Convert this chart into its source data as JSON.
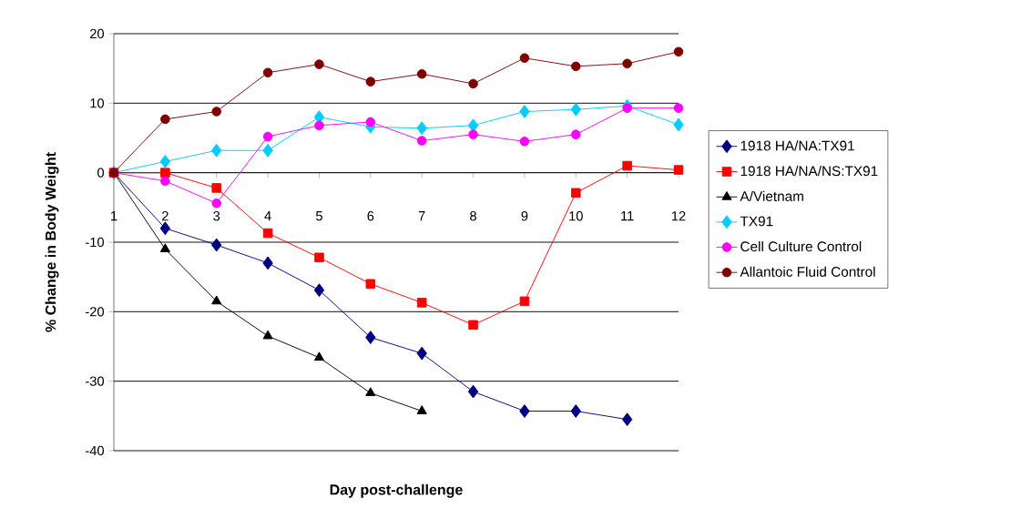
{
  "chart_data": {
    "type": "line",
    "xlabel": "Day post-challenge",
    "ylabel": "% Change in Body Weight",
    "x": [
      1,
      2,
      3,
      4,
      5,
      6,
      7,
      8,
      9,
      10,
      11,
      12
    ],
    "xlim": [
      1,
      12
    ],
    "xticks": [
      1,
      2,
      3,
      4,
      5,
      6,
      7,
      8,
      9,
      10,
      11,
      12
    ],
    "ylim": [
      -40,
      20
    ],
    "yticks": [
      -40,
      -30,
      -20,
      -10,
      0,
      10,
      20
    ],
    "grid": "y",
    "legend": "right",
    "line_style": "solid",
    "series": [
      {
        "name": "1918 HA/NA:TX91",
        "color": "#000080",
        "marker": "diamond",
        "values": [
          0,
          -8.0,
          -10.4,
          -13.0,
          -16.9,
          -23.7,
          -26.0,
          -31.5,
          -34.3,
          -34.3,
          -35.5,
          null
        ]
      },
      {
        "name": "1918 HA/NA/NS:TX91",
        "color": "#ff0000",
        "marker": "square",
        "values": [
          0,
          0,
          -2.2,
          -8.7,
          -12.2,
          -16.0,
          -18.7,
          -21.9,
          -18.5,
          -2.9,
          1.0,
          0.4
        ]
      },
      {
        "name": "A/Vietnam",
        "color": "#000000",
        "marker": "triangle",
        "values": [
          0,
          -11.0,
          -18.5,
          -23.5,
          -26.6,
          -31.7,
          -34.3,
          null,
          null,
          null,
          null,
          null
        ]
      },
      {
        "name": "TX91",
        "color": "#00ccff",
        "marker": "diamond",
        "values": [
          0,
          1.6,
          3.2,
          3.2,
          8.0,
          6.6,
          6.4,
          6.8,
          8.8,
          9.1,
          9.6,
          6.9
        ]
      },
      {
        "name": "Cell Culture Control",
        "color": "#ff00ff",
        "marker": "circle",
        "values": [
          0,
          -1.2,
          -4.4,
          5.2,
          6.8,
          7.3,
          4.6,
          5.5,
          4.5,
          5.5,
          9.3,
          9.3
        ]
      },
      {
        "name": "Allantoic Fluid Control",
        "color": "#800000",
        "marker": "circle",
        "values": [
          0,
          7.7,
          8.8,
          14.4,
          15.6,
          13.1,
          14.2,
          12.8,
          16.5,
          15.3,
          15.7,
          17.4
        ]
      }
    ]
  }
}
